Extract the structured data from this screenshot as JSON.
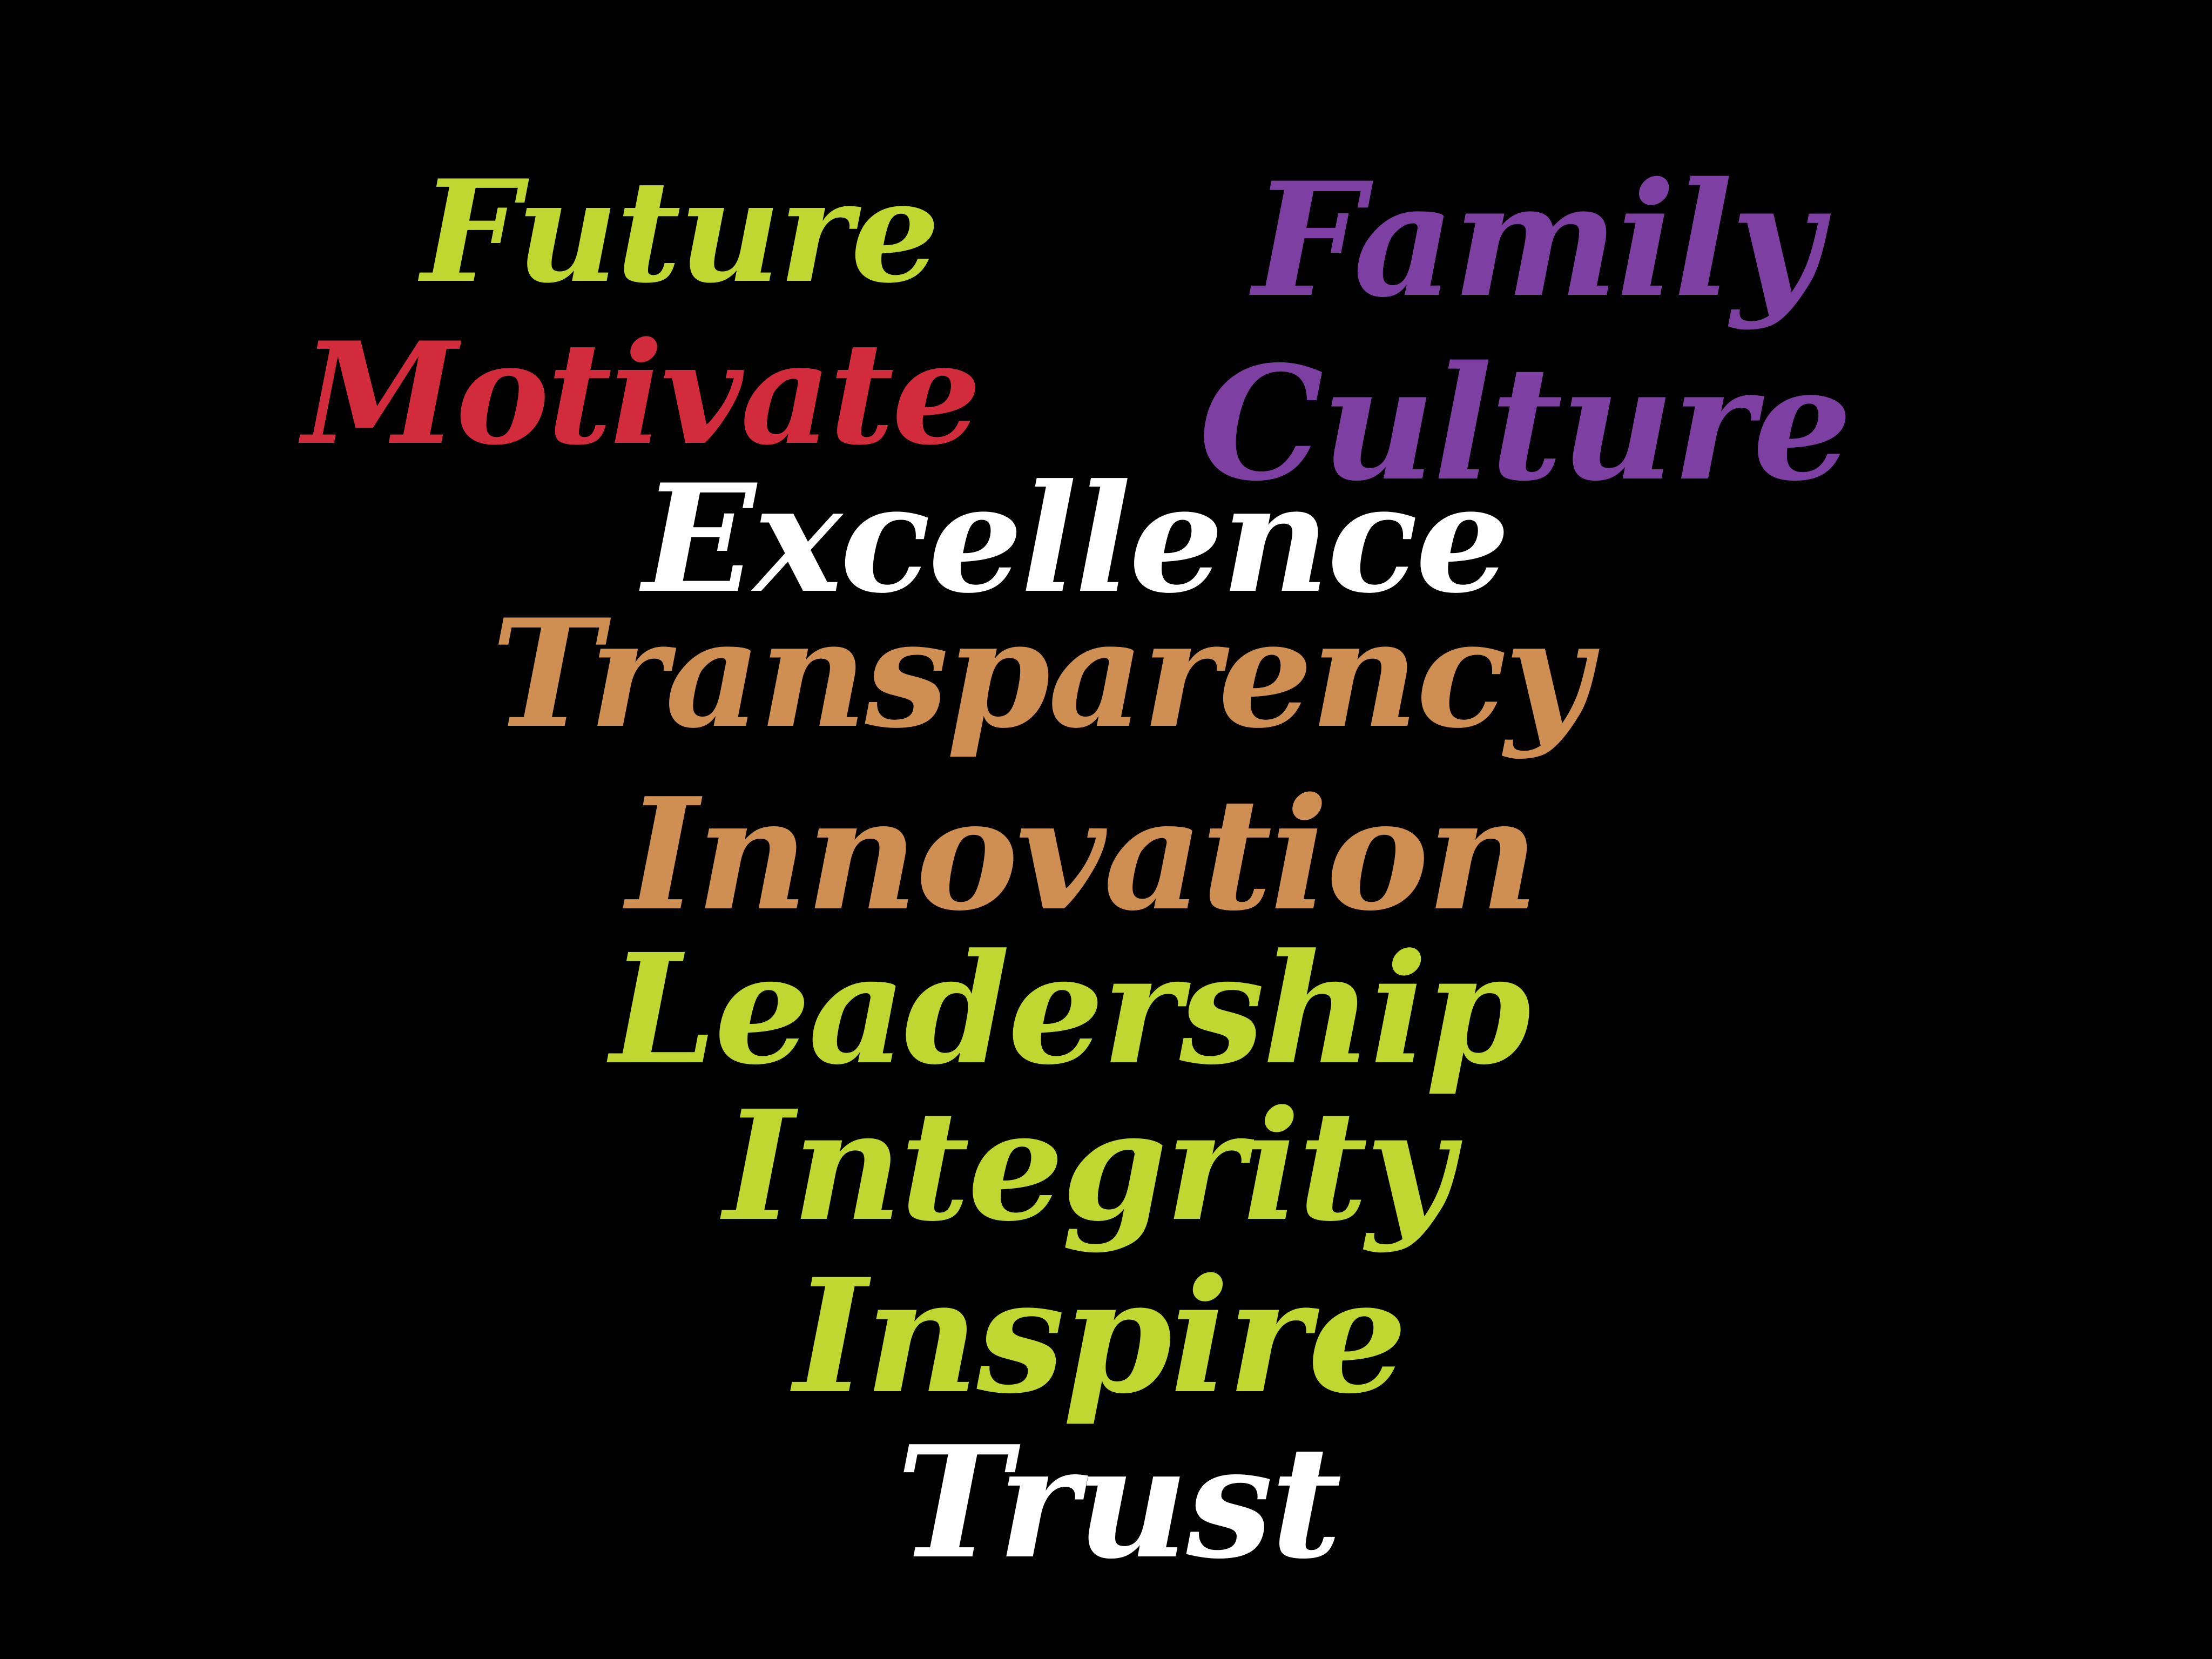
{
  "colors": {
    "background": "#000000",
    "lime": "#BFD730",
    "purple": "#7E3FA3",
    "red": "#D22B3C",
    "white": "#FFFFFF",
    "tan": "#CF8E52"
  },
  "words": [
    {
      "key": "future",
      "text": "Future",
      "color": "#BFD730"
    },
    {
      "key": "family",
      "text": "Family",
      "color": "#7E3FA3"
    },
    {
      "key": "motivate",
      "text": "Motivate",
      "color": "#D22B3C"
    },
    {
      "key": "culture",
      "text": "Culture",
      "color": "#7E3FA3"
    },
    {
      "key": "excellence",
      "text": "Excellence",
      "color": "#FFFFFF"
    },
    {
      "key": "transparency",
      "text": "Transparency",
      "color": "#CF8E52"
    },
    {
      "key": "innovation",
      "text": "Innovation",
      "color": "#CF8E52"
    },
    {
      "key": "leadership",
      "text": "Leadership",
      "color": "#BFD730"
    },
    {
      "key": "integrity",
      "text": "Integrity",
      "color": "#BFD730"
    },
    {
      "key": "inspire",
      "text": "Inspire",
      "color": "#BFD730"
    },
    {
      "key": "trust",
      "text": "Trust",
      "color": "#FFFFFF"
    }
  ]
}
